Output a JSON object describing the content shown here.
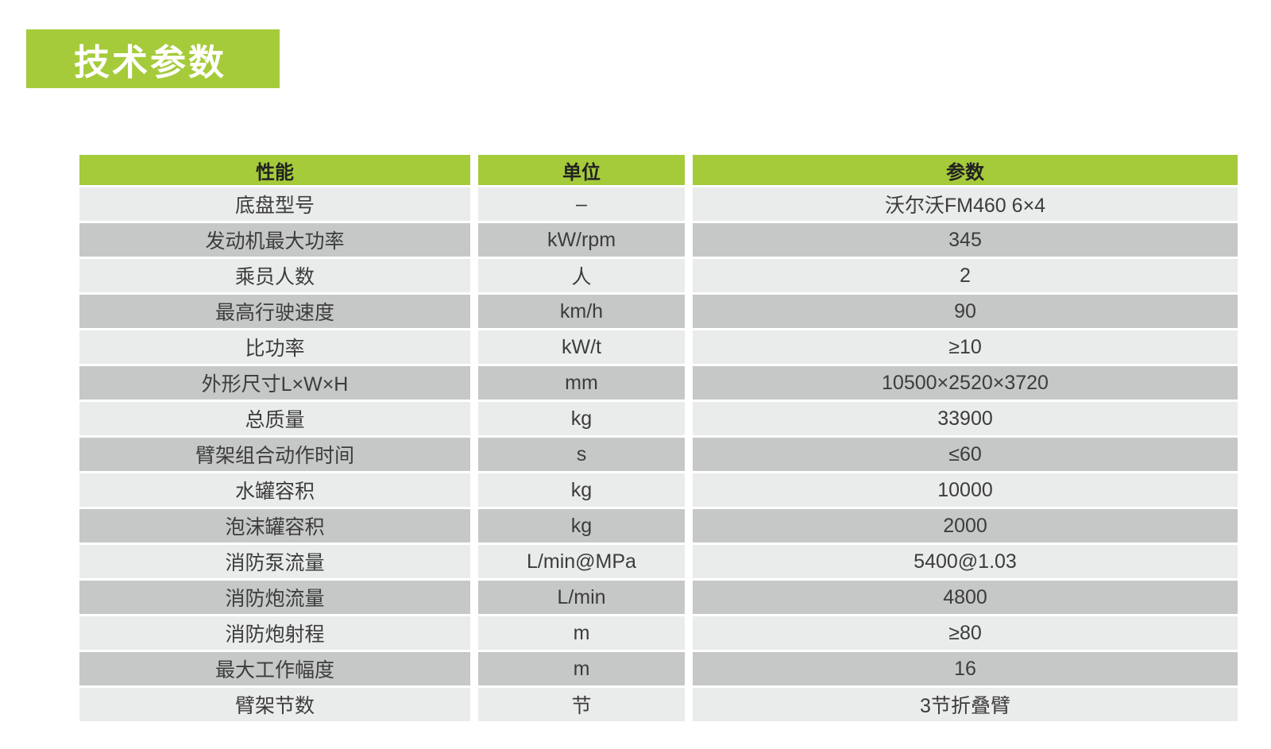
{
  "theme": {
    "accent_green": "#a5cb3b",
    "row_light": "#eaebeb",
    "row_dark": "#c6c7c7",
    "text_dark": "#3c3c3c",
    "title_text": "#ffffff"
  },
  "title": {
    "label": "技术参数"
  },
  "table": {
    "header": {
      "cols": [
        "性能",
        "单位",
        "参数"
      ]
    },
    "rows": [
      {
        "name": "底盘型号",
        "unit": "–",
        "value": "沃尔沃FM460 6×4"
      },
      {
        "name": "发动机最大功率",
        "unit": "kW/rpm",
        "value": "345"
      },
      {
        "name": "乘员人数",
        "unit": "人",
        "value": "2"
      },
      {
        "name": "最高行驶速度",
        "unit": "km/h",
        "value": "90"
      },
      {
        "name": "比功率",
        "unit": "kW/t",
        "value": "≥10"
      },
      {
        "name": "外形尺寸L×W×H",
        "unit": "mm",
        "value": "10500×2520×3720"
      },
      {
        "name": "总质量",
        "unit": "kg",
        "value": "33900"
      },
      {
        "name": "臂架组合动作时间",
        "unit": "s",
        "value": "≤60"
      },
      {
        "name": "水罐容积",
        "unit": "kg",
        "value": "10000"
      },
      {
        "name": "泡沫罐容积",
        "unit": "kg",
        "value": "2000"
      },
      {
        "name": "消防泵流量",
        "unit": "L/min@MPa",
        "value": "5400@1.03"
      },
      {
        "name": "消防炮流量",
        "unit": "L/min",
        "value": "4800"
      },
      {
        "name": "消防炮射程",
        "unit": "m",
        "value": "≥80"
      },
      {
        "name": "最大工作幅度",
        "unit": "m",
        "value": "16"
      },
      {
        "name": "臂架节数",
        "unit": "节",
        "value": "3节折叠臂"
      }
    ]
  }
}
